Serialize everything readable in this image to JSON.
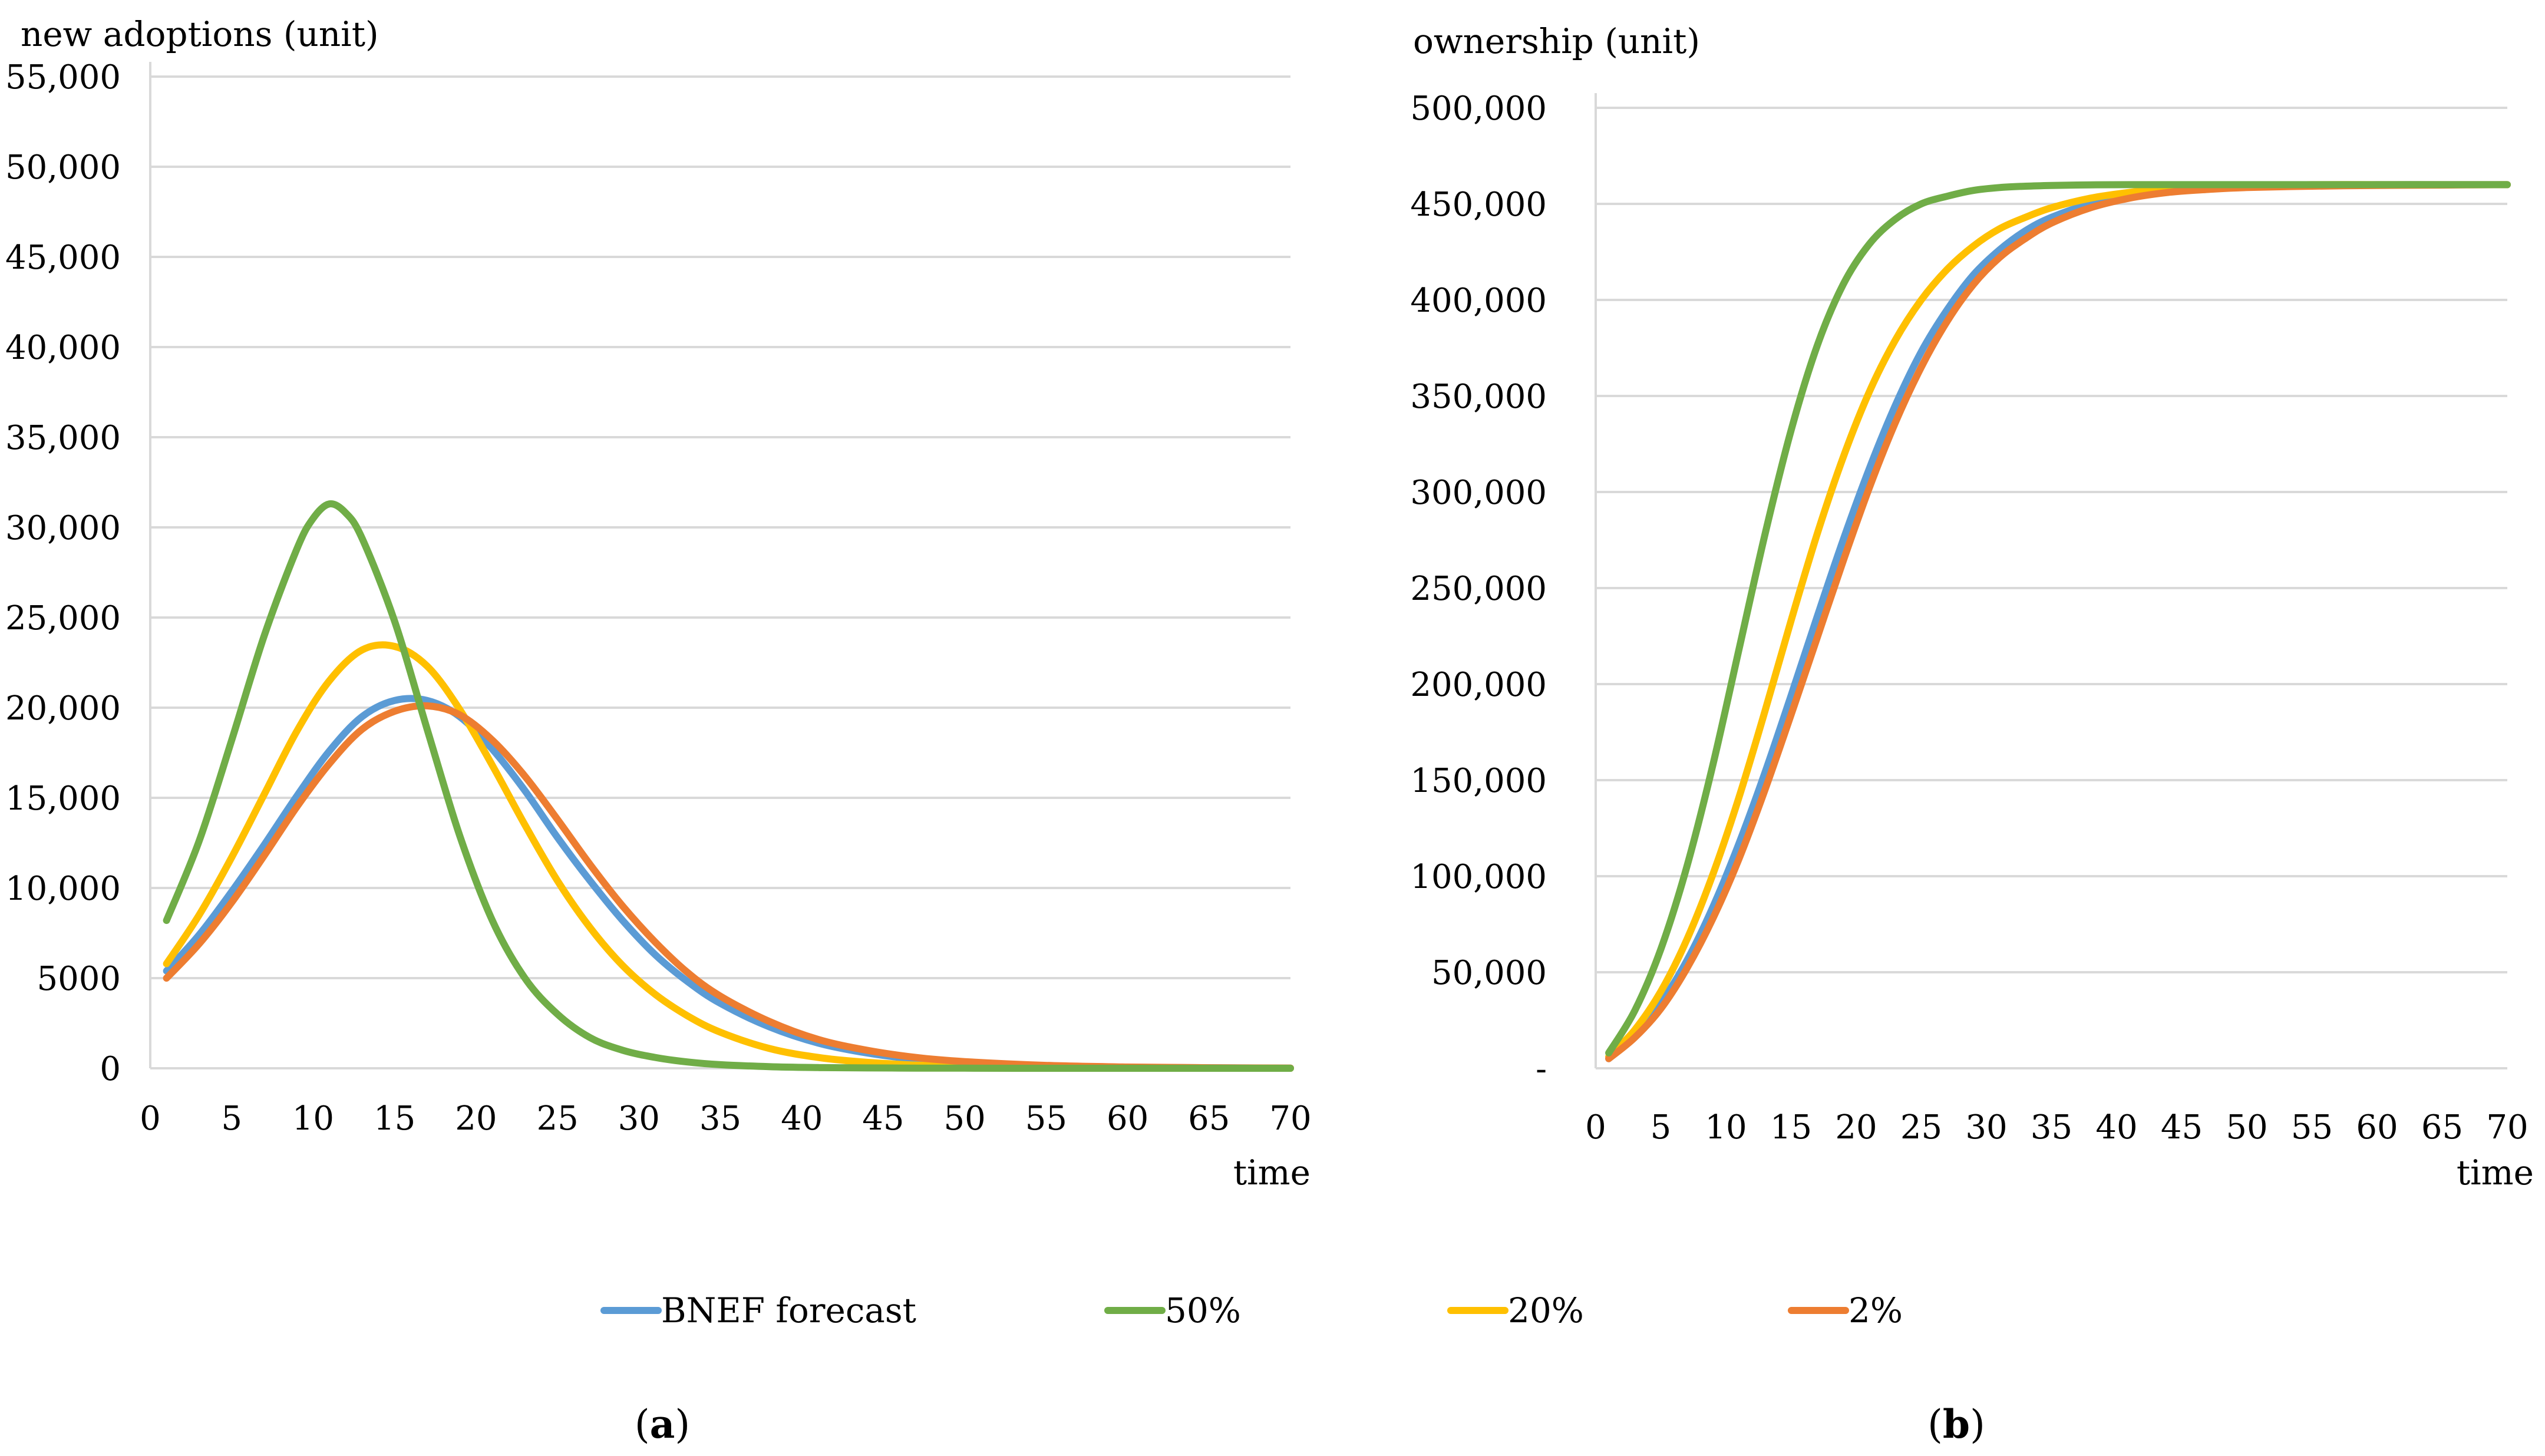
{
  "legend": [
    {
      "name": "BNEF forecast",
      "color": "#5b9bd5"
    },
    {
      "name": "50%",
      "color": "#70ad47"
    },
    {
      "name": "20%",
      "color": "#ffc000"
    },
    {
      "name": "2%",
      "color": "#ed7d31"
    }
  ],
  "captions": {
    "a": {
      "open": "(",
      "letter": "a",
      "close": ")"
    },
    "b": {
      "open": "(",
      "letter": "b",
      "close": ")"
    }
  },
  "chart_data": [
    {
      "type": "line",
      "panel": "a",
      "title": "",
      "ylabel": "new adoptions (unit)",
      "xlabel": "time",
      "xlim": [
        0,
        70
      ],
      "ylim": [
        0,
        55000
      ],
      "xticks": [
        "0",
        "5",
        "10",
        "15",
        "20",
        "25",
        "30",
        "35",
        "40",
        "45",
        "50",
        "55",
        "60",
        "65",
        "70"
      ],
      "yticks": [
        "0",
        "5000",
        "10,000",
        "15,000",
        "20,000",
        "25,000",
        "30,000",
        "35,000",
        "40,000",
        "45,000",
        "50,000",
        "55,000"
      ],
      "grid": true,
      "x": [
        1,
        5,
        10,
        15,
        20,
        25,
        30,
        35,
        40,
        45,
        50,
        55,
        60,
        65,
        70
      ],
      "series": [
        {
          "name": "BNEF forecast",
          "color": "#5b9bd5",
          "x": [
            1,
            3,
            5,
            7,
            9,
            11,
            13,
            15,
            17,
            19,
            21,
            23,
            25,
            27,
            29,
            31,
            33,
            35,
            38,
            41,
            44,
            47,
            50,
            55,
            60,
            65,
            70
          ],
          "values": [
            5400,
            7400,
            9800,
            12400,
            15100,
            17600,
            19500,
            20400,
            20400,
            19500,
            17700,
            15400,
            12800,
            10400,
            8200,
            6300,
            4800,
            3600,
            2300,
            1400,
            850,
            500,
            300,
            130,
            60,
            30,
            10
          ]
        },
        {
          "name": "50%",
          "color": "#70ad47",
          "x": [
            1,
            3,
            5,
            7,
            9,
            10,
            11,
            12,
            13,
            15,
            17,
            19,
            21,
            23,
            25,
            27,
            29,
            31,
            33,
            35,
            38,
            41,
            44,
            47,
            50,
            55,
            60,
            65,
            70
          ],
          "values": [
            8200,
            12600,
            18200,
            24000,
            28800,
            30500,
            31300,
            30800,
            29400,
            24800,
            18800,
            12900,
            8200,
            5000,
            3000,
            1700,
            1000,
            600,
            350,
            200,
            90,
            40,
            20,
            10,
            5,
            0,
            0,
            0,
            0
          ]
        },
        {
          "name": "20%",
          "color": "#ffc000",
          "x": [
            1,
            3,
            5,
            7,
            9,
            11,
            13,
            15,
            17,
            19,
            21,
            23,
            25,
            27,
            29,
            31,
            33,
            35,
            38,
            41,
            44,
            47,
            50,
            55,
            60,
            65,
            70
          ],
          "values": [
            5800,
            8500,
            11700,
            15200,
            18700,
            21500,
            23200,
            23400,
            22300,
            19900,
            16800,
            13500,
            10400,
            7800,
            5700,
            4100,
            2900,
            2000,
            1100,
            600,
            330,
            180,
            100,
            40,
            15,
            5,
            0
          ]
        },
        {
          "name": "2%",
          "color": "#ed7d31",
          "x": [
            1,
            3,
            5,
            7,
            9,
            11,
            13,
            15,
            17,
            19,
            21,
            23,
            25,
            27,
            29,
            31,
            33,
            35,
            38,
            41,
            44,
            47,
            50,
            55,
            60,
            65,
            70
          ],
          "values": [
            5000,
            6900,
            9200,
            11800,
            14500,
            16900,
            18800,
            19800,
            20100,
            19600,
            18200,
            16200,
            13800,
            11300,
            9000,
            7000,
            5300,
            4000,
            2600,
            1600,
            1000,
            600,
            370,
            160,
            70,
            30,
            12
          ]
        }
      ]
    },
    {
      "type": "line",
      "panel": "b",
      "title": "",
      "ylabel": "ownership (unit)",
      "xlabel": "time",
      "xlim": [
        0,
        70
      ],
      "ylim": [
        0,
        500000
      ],
      "xticks": [
        "0",
        "5",
        "10",
        "15",
        "20",
        "25",
        "30",
        "35",
        "40",
        "45",
        "50",
        "55",
        "60",
        "65",
        "70"
      ],
      "yticks": [
        "-",
        "50,000",
        "100,000",
        "150,000",
        "200,000",
        "250,000",
        "300,000",
        "350,000",
        "400,000",
        "450,000",
        "500,000"
      ],
      "grid": true,
      "series": [
        {
          "name": "BNEF forecast",
          "color": "#5b9bd5",
          "x": [
            1,
            3,
            5,
            7,
            9,
            11,
            13,
            15,
            17,
            19,
            21,
            23,
            25,
            27,
            29,
            31,
            33,
            35,
            38,
            41,
            44,
            47,
            50,
            55,
            60,
            65,
            70
          ],
          "values": [
            5000,
            17000,
            34000,
            56000,
            84000,
            117000,
            154000,
            194000,
            235000,
            275000,
            312000,
            345000,
            373000,
            395000,
            413000,
            426000,
            436000,
            443000,
            450000,
            454000,
            457000,
            458000,
            459000,
            459500,
            460000,
            460000,
            460000
          ]
        },
        {
          "name": "50%",
          "color": "#70ad47",
          "x": [
            1,
            3,
            5,
            7,
            9,
            11,
            13,
            15,
            17,
            19,
            21,
            23,
            25,
            27,
            29,
            31,
            33,
            35,
            38,
            41,
            44,
            47,
            50,
            55,
            60,
            65,
            70
          ],
          "values": [
            8000,
            30000,
            62000,
            105000,
            158000,
            218000,
            278000,
            332000,
            376000,
            408000,
            429000,
            442000,
            450000,
            454000,
            457000,
            458500,
            459200,
            459600,
            459900,
            460000,
            460000,
            460000,
            460000,
            460000,
            460000,
            460000,
            460000
          ]
        },
        {
          "name": "20%",
          "color": "#ffc000",
          "x": [
            1,
            3,
            5,
            7,
            9,
            11,
            13,
            15,
            17,
            19,
            21,
            23,
            25,
            27,
            29,
            31,
            33,
            35,
            38,
            41,
            44,
            47,
            50,
            55,
            60,
            65,
            70
          ],
          "values": [
            6000,
            20000,
            40000,
            67000,
            101000,
            141000,
            186000,
            233000,
            278000,
            318000,
            352000,
            379000,
            400000,
            416000,
            428000,
            437000,
            443000,
            448000,
            453000,
            456000,
            458000,
            459000,
            459500,
            460000,
            460000,
            460000,
            460000
          ]
        },
        {
          "name": "2%",
          "color": "#ed7d31",
          "x": [
            1,
            3,
            5,
            7,
            9,
            11,
            13,
            15,
            17,
            19,
            21,
            23,
            25,
            27,
            29,
            31,
            33,
            35,
            38,
            41,
            44,
            47,
            50,
            55,
            60,
            65,
            70
          ],
          "values": [
            5000,
            16000,
            31000,
            52000,
            78000,
            109000,
            145000,
            184000,
            224000,
            264000,
            302000,
            336000,
            365000,
            389000,
            408000,
            422000,
            432000,
            440000,
            448000,
            453000,
            456000,
            457500,
            458500,
            459200,
            459600,
            459800,
            460000
          ]
        }
      ]
    }
  ]
}
